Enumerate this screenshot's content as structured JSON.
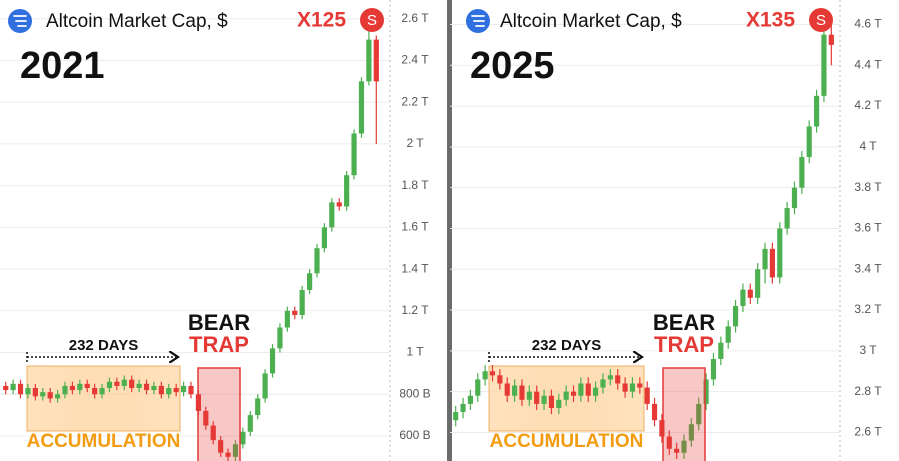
{
  "chart_data": [
    {
      "type": "candlestick",
      "title": "Altcoin Market Cap, $",
      "subtitle": "2021",
      "multiplier": "X125",
      "badge": "S",
      "annotations": {
        "duration": "232 DAYS",
        "trap_top": "BEAR",
        "trap_bottom": "TRAP",
        "zone": "ACCUMULATION"
      },
      "up_color": "#4caf50",
      "down_color": "#e53935",
      "grid": true,
      "ylim": [
        0.48,
        2.69
      ],
      "yticks": [
        {
          "value": 0.6,
          "label": "600 B"
        },
        {
          "value": 0.8,
          "label": "800 B"
        },
        {
          "value": 1.0,
          "label": "1 T"
        },
        {
          "value": 1.2,
          "label": "1.2 T"
        },
        {
          "value": 1.4,
          "label": "1.4 T"
        },
        {
          "value": 1.6,
          "label": "1.6 T"
        },
        {
          "value": 1.8,
          "label": "1.8 T"
        },
        {
          "value": 2.0,
          "label": "2 T"
        },
        {
          "value": 2.2,
          "label": "2.2 T"
        },
        {
          "value": 2.4,
          "label": "2.4 T"
        },
        {
          "value": 2.6,
          "label": "2.6 T"
        }
      ],
      "open": [
        0.84,
        0.82,
        0.85,
        0.8,
        0.83,
        0.79,
        0.81,
        0.78,
        0.8,
        0.84,
        0.82,
        0.85,
        0.83,
        0.8,
        0.83,
        0.86,
        0.84,
        0.87,
        0.83,
        0.85,
        0.82,
        0.84,
        0.8,
        0.83,
        0.81,
        0.84,
        0.8,
        0.72,
        0.65,
        0.58,
        0.52,
        0.5,
        0.56,
        0.62,
        0.7,
        0.78,
        0.9,
        1.02,
        1.12,
        1.2,
        1.18,
        1.3,
        1.38,
        1.5,
        1.6,
        1.72,
        1.7,
        1.85,
        2.05,
        2.3,
        2.5
      ],
      "high": [
        0.86,
        0.87,
        0.87,
        0.85,
        0.85,
        0.83,
        0.83,
        0.82,
        0.86,
        0.86,
        0.87,
        0.87,
        0.85,
        0.85,
        0.88,
        0.88,
        0.89,
        0.89,
        0.87,
        0.87,
        0.86,
        0.86,
        0.85,
        0.85,
        0.86,
        0.86,
        0.82,
        0.74,
        0.67,
        0.6,
        0.54,
        0.58,
        0.64,
        0.72,
        0.8,
        0.92,
        1.04,
        1.14,
        1.22,
        1.22,
        1.32,
        1.4,
        1.52,
        1.62,
        1.74,
        1.74,
        1.87,
        2.07,
        2.32,
        2.62,
        2.52
      ],
      "low": [
        0.8,
        0.8,
        0.78,
        0.78,
        0.77,
        0.77,
        0.76,
        0.76,
        0.78,
        0.8,
        0.8,
        0.81,
        0.78,
        0.78,
        0.81,
        0.82,
        0.82,
        0.81,
        0.81,
        0.8,
        0.8,
        0.78,
        0.78,
        0.79,
        0.79,
        0.78,
        0.7,
        0.63,
        0.56,
        0.5,
        0.48,
        0.48,
        0.54,
        0.6,
        0.68,
        0.76,
        0.88,
        1.0,
        1.1,
        1.16,
        1.16,
        1.28,
        1.36,
        1.48,
        1.58,
        1.68,
        1.68,
        1.83,
        2.03,
        2.28,
        2.0
      ],
      "close": [
        0.82,
        0.85,
        0.8,
        0.83,
        0.79,
        0.81,
        0.78,
        0.8,
        0.84,
        0.82,
        0.85,
        0.83,
        0.8,
        0.83,
        0.86,
        0.84,
        0.87,
        0.83,
        0.85,
        0.82,
        0.84,
        0.8,
        0.83,
        0.81,
        0.84,
        0.8,
        0.72,
        0.65,
        0.58,
        0.52,
        0.5,
        0.56,
        0.62,
        0.7,
        0.78,
        0.9,
        1.02,
        1.12,
        1.2,
        1.18,
        1.3,
        1.38,
        1.5,
        1.6,
        1.72,
        1.7,
        1.85,
        2.05,
        2.3,
        2.5,
        2.3
      ]
    },
    {
      "type": "candlestick",
      "title": "Altcoin Market Cap, $",
      "subtitle": "2025",
      "multiplier": "X135",
      "badge": "S",
      "annotations": {
        "duration": "232 DAYS",
        "trap_top": "BEAR",
        "trap_bottom": "TRAP",
        "zone": "ACCUMULATION"
      },
      "up_color": "#4caf50",
      "down_color": "#e53935",
      "grid": true,
      "ylim": [
        2.46,
        4.72
      ],
      "yticks": [
        {
          "value": 2.6,
          "label": "2.6 T"
        },
        {
          "value": 2.8,
          "label": "2.8 T"
        },
        {
          "value": 3.0,
          "label": "3 T"
        },
        {
          "value": 3.2,
          "label": "3.2 T"
        },
        {
          "value": 3.4,
          "label": "3.4 T"
        },
        {
          "value": 3.6,
          "label": "3.6 T"
        },
        {
          "value": 3.8,
          "label": "3.8 T"
        },
        {
          "value": 4.0,
          "label": "4 T"
        },
        {
          "value": 4.2,
          "label": "4.2 T"
        },
        {
          "value": 4.4,
          "label": "4.4 T"
        },
        {
          "value": 4.6,
          "label": "4.6 T"
        }
      ],
      "open": [
        2.66,
        2.7,
        2.74,
        2.78,
        2.86,
        2.9,
        2.88,
        2.84,
        2.78,
        2.83,
        2.76,
        2.8,
        2.74,
        2.78,
        2.72,
        2.76,
        2.8,
        2.78,
        2.84,
        2.78,
        2.82,
        2.86,
        2.88,
        2.84,
        2.8,
        2.84,
        2.82,
        2.74,
        2.66,
        2.58,
        2.52,
        2.5,
        2.56,
        2.64,
        2.74,
        2.86,
        2.96,
        3.04,
        3.12,
        3.22,
        3.3,
        3.26,
        3.4,
        3.5,
        3.36,
        3.6,
        3.7,
        3.8,
        3.95,
        4.1,
        4.25,
        4.55
      ],
      "high": [
        2.73,
        2.77,
        2.81,
        2.89,
        2.93,
        2.93,
        2.91,
        2.87,
        2.86,
        2.86,
        2.83,
        2.83,
        2.81,
        2.81,
        2.79,
        2.83,
        2.83,
        2.87,
        2.87,
        2.85,
        2.89,
        2.91,
        2.91,
        2.87,
        2.87,
        2.87,
        2.85,
        2.77,
        2.69,
        2.61,
        2.55,
        2.59,
        2.67,
        2.77,
        2.89,
        2.99,
        3.07,
        3.15,
        3.25,
        3.33,
        3.33,
        3.43,
        3.53,
        3.53,
        3.63,
        3.73,
        3.83,
        3.98,
        4.13,
        4.28,
        4.62,
        4.6
      ],
      "low": [
        2.63,
        2.67,
        2.71,
        2.75,
        2.83,
        2.85,
        2.81,
        2.75,
        2.75,
        2.73,
        2.73,
        2.71,
        2.71,
        2.69,
        2.69,
        2.73,
        2.75,
        2.75,
        2.75,
        2.75,
        2.79,
        2.83,
        2.81,
        2.77,
        2.77,
        2.79,
        2.71,
        2.63,
        2.55,
        2.49,
        2.47,
        2.47,
        2.53,
        2.61,
        2.71,
        2.83,
        2.93,
        3.01,
        3.09,
        3.19,
        3.23,
        3.23,
        3.33,
        3.33,
        3.33,
        3.57,
        3.67,
        3.77,
        3.92,
        4.07,
        4.22,
        4.4
      ],
      "close": [
        2.7,
        2.74,
        2.78,
        2.86,
        2.9,
        2.88,
        2.84,
        2.78,
        2.83,
        2.76,
        2.8,
        2.74,
        2.78,
        2.72,
        2.76,
        2.8,
        2.78,
        2.84,
        2.78,
        2.82,
        2.86,
        2.88,
        2.84,
        2.8,
        2.84,
        2.82,
        2.74,
        2.66,
        2.58,
        2.52,
        2.5,
        2.56,
        2.64,
        2.74,
        2.86,
        2.96,
        3.04,
        3.12,
        3.22,
        3.3,
        3.26,
        3.4,
        3.5,
        3.36,
        3.6,
        3.7,
        3.8,
        3.95,
        4.1,
        4.25,
        4.55,
        4.5
      ]
    }
  ]
}
